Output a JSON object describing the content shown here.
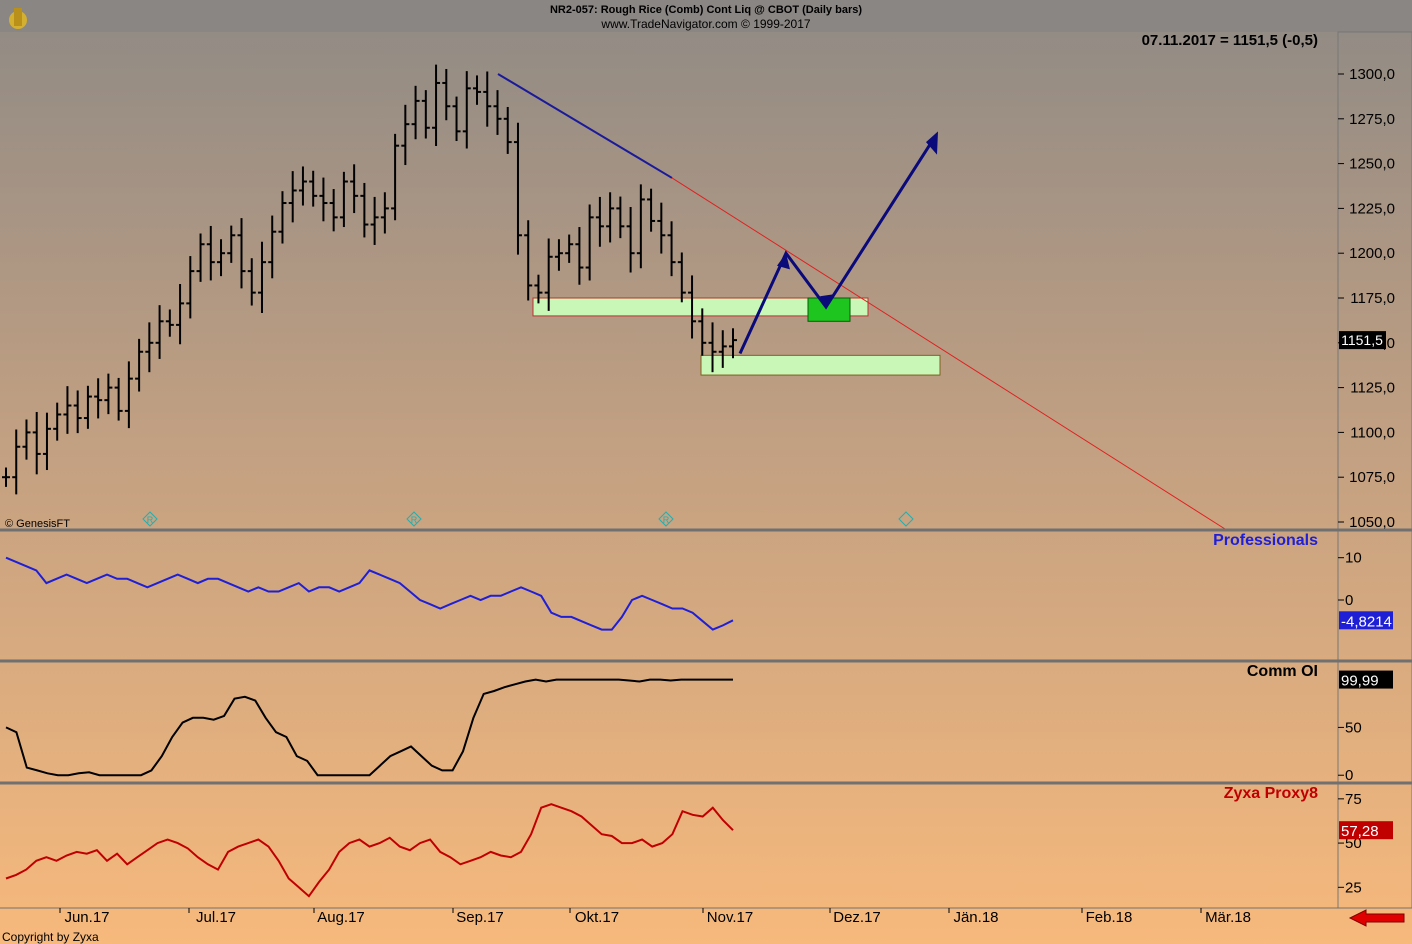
{
  "header": {
    "title": "NR2-057:  Rough Rice (Comb) Cont Liq @ CBOT  (Daily bars)",
    "subtitle": "www.TradeNavigator.com © 1999-2017",
    "quote": "07.11.2017 = 1151,5 (-0,5)"
  },
  "footer": {
    "copyright": "Copyright by Zyxa"
  },
  "watermark": "© GenesisFT",
  "x_axis": [
    "Jun.17",
    "Jul.17",
    "Aug.17",
    "Sep.17",
    "Okt.17",
    "Nov.17",
    "Dez.17",
    "Jän.18",
    "Feb.18",
    "Mär.18"
  ],
  "colors": {
    "bg_top": "#8f8a85",
    "bg_bottom": "#f7b97c",
    "professionals": "#1f1fd6",
    "comm_oi": "#000000",
    "proxy8": "#c00000",
    "trend_arrow": "#0a0a7a",
    "support_red": "#e02020",
    "zone": "#c8f7b8",
    "target": "#1ec51e"
  },
  "chart_data": [
    {
      "type": "ohlc",
      "title": "NR2-057:  Rough Rice (Comb) Cont Liq @ CBOT  (Daily bars)",
      "y_ticks": [
        "1300,0",
        "1275,0",
        "1250,0",
        "1225,0",
        "1200,0",
        "1175,0",
        "1150,0",
        "1125,0",
        "1100,0",
        "1075,0",
        "1050,0"
      ],
      "ylim": [
        1045,
        1312
      ],
      "last_value": "1151,5",
      "x_ticks": [
        "Jun.17",
        "Jul.17",
        "Aug.17",
        "Sep.17",
        "Okt.17",
        "Nov.17",
        "Dez.17",
        "Jän.18",
        "Feb.18",
        "Mär.18"
      ],
      "closes_approx": [
        1075,
        1092,
        1100,
        1088,
        1102,
        1110,
        1115,
        1108,
        1120,
        1118,
        1125,
        1112,
        1130,
        1145,
        1150,
        1162,
        1160,
        1172,
        1190,
        1205,
        1195,
        1200,
        1210,
        1190,
        1178,
        1195,
        1212,
        1228,
        1235,
        1240,
        1232,
        1228,
        1220,
        1240,
        1232,
        1216,
        1220,
        1225,
        1260,
        1272,
        1285,
        1270,
        1295,
        1282,
        1268,
        1292,
        1290,
        1282,
        1275,
        1262,
        1210,
        1182,
        1178,
        1198,
        1200,
        1205,
        1192,
        1220,
        1215,
        1225,
        1215,
        1200,
        1230,
        1218,
        1210,
        1195,
        1178,
        1162,
        1150,
        1145,
        1148,
        1151.5
      ],
      "annotations": {
        "down_trendline_start": [
          "Sep.17",
          1300
        ],
        "support_zone": [
          1165,
          1175
        ],
        "lower_zone": [
          1132,
          1143
        ],
        "target_box": [
          1162,
          1175
        ],
        "projected_high": 1268
      }
    },
    {
      "type": "line",
      "title": "Professionals",
      "y_ticks": [
        "10",
        "0"
      ],
      "ylim": [
        -13,
        13
      ],
      "last_value": "-4,8214",
      "values": [
        10,
        9,
        8,
        7,
        4,
        5,
        6,
        5,
        4,
        5,
        6,
        5,
        5,
        4,
        3,
        4,
        5,
        6,
        5,
        4,
        5,
        5,
        4,
        3,
        2,
        3,
        2,
        2,
        3,
        4,
        2,
        3,
        3,
        2,
        3,
        4,
        7,
        6,
        5,
        4,
        2,
        0,
        -1,
        -2,
        -1,
        0,
        1,
        0,
        1,
        1,
        2,
        3,
        2,
        1,
        -3,
        -4,
        -4,
        -5,
        -6,
        -7,
        -7,
        -4,
        0,
        1,
        0,
        -1,
        -2,
        -2,
        -3,
        -5,
        -7,
        -6,
        -4.8
      ]
    },
    {
      "type": "line",
      "title": "Comm OI",
      "y_ticks": [
        "50",
        "0"
      ],
      "ylim": [
        -5,
        110
      ],
      "last_value": "99,99",
      "values": [
        50,
        45,
        8,
        5,
        2,
        0,
        0,
        2,
        3,
        0,
        0,
        0,
        0,
        0,
        5,
        20,
        40,
        55,
        60,
        60,
        58,
        62,
        80,
        82,
        78,
        60,
        45,
        40,
        20,
        15,
        0,
        0,
        0,
        0,
        0,
        0,
        10,
        20,
        25,
        30,
        20,
        10,
        5,
        5,
        25,
        60,
        85,
        88,
        92,
        95,
        98,
        100,
        98,
        100,
        100,
        100,
        100,
        100,
        100,
        100,
        99,
        98,
        100,
        100,
        99,
        100,
        100,
        100,
        100,
        100,
        99.99
      ]
    },
    {
      "type": "line",
      "title": "Zyxa Proxy8",
      "y_ticks": [
        "75",
        "50",
        "25"
      ],
      "ylim": [
        15,
        80
      ],
      "last_value": "57,28",
      "values": [
        30,
        32,
        35,
        40,
        42,
        40,
        43,
        45,
        44,
        46,
        40,
        44,
        38,
        42,
        46,
        50,
        52,
        50,
        47,
        42,
        38,
        35,
        45,
        48,
        50,
        52,
        48,
        40,
        30,
        25,
        20,
        28,
        35,
        45,
        50,
        52,
        48,
        50,
        53,
        48,
        46,
        50,
        52,
        45,
        42,
        38,
        40,
        42,
        45,
        43,
        42,
        45,
        55,
        70,
        72,
        70,
        68,
        65,
        60,
        55,
        54,
        50,
        50,
        52,
        48,
        50,
        55,
        68,
        66,
        65,
        70,
        63,
        57.28
      ]
    }
  ]
}
